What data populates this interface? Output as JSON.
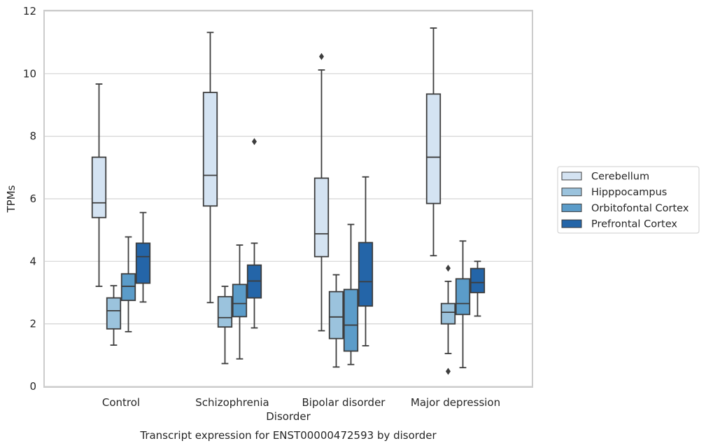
{
  "chart_data": {
    "type": "boxplot",
    "caption": "Transcript expression for ENST00000472593 by disorder",
    "xlabel": "Disorder",
    "ylabel": "TPMs",
    "ylim": [
      0,
      12
    ],
    "yticks": [
      0,
      2,
      4,
      6,
      8,
      10,
      12
    ],
    "grid": "horizontal",
    "legend_position": "right",
    "categories": [
      "Control",
      "Schizophrenia",
      "Bipolar disorder",
      "Major depression"
    ],
    "series": [
      {
        "name": "Cerebellum",
        "color": "#d4e3f2",
        "boxes": [
          {
            "whislo": 3.2,
            "q1": 5.4,
            "med": 5.87,
            "q3": 7.33,
            "whishi": 9.67,
            "fliers": []
          },
          {
            "whislo": 2.68,
            "q1": 5.77,
            "med": 6.75,
            "q3": 9.4,
            "whishi": 11.32,
            "fliers": []
          },
          {
            "whislo": 1.78,
            "q1": 4.15,
            "med": 4.88,
            "q3": 6.66,
            "whishi": 10.12,
            "fliers": [
              10.55
            ]
          },
          {
            "whislo": 4.18,
            "q1": 5.85,
            "med": 7.33,
            "q3": 9.35,
            "whishi": 11.46,
            "fliers": []
          }
        ]
      },
      {
        "name": "Hipppocampus",
        "color": "#9bc3dd",
        "boxes": [
          {
            "whislo": 1.32,
            "q1": 1.84,
            "med": 2.42,
            "q3": 2.83,
            "whishi": 3.22,
            "fliers": []
          },
          {
            "whislo": 0.73,
            "q1": 1.9,
            "med": 2.2,
            "q3": 2.87,
            "whishi": 3.2,
            "fliers": []
          },
          {
            "whislo": 0.62,
            "q1": 1.53,
            "med": 2.22,
            "q3": 3.03,
            "whishi": 3.57,
            "fliers": []
          },
          {
            "whislo": 1.05,
            "q1": 2.0,
            "med": 2.37,
            "q3": 2.65,
            "whishi": 3.36,
            "fliers": [
              3.78,
              0.48
            ]
          }
        ]
      },
      {
        "name": "Orbitofontal Cortex",
        "color": "#5b9cc9",
        "boxes": [
          {
            "whislo": 1.75,
            "q1": 2.75,
            "med": 3.2,
            "q3": 3.6,
            "whishi": 4.78,
            "fliers": []
          },
          {
            "whislo": 0.88,
            "q1": 2.23,
            "med": 2.65,
            "q3": 3.26,
            "whishi": 4.52,
            "fliers": []
          },
          {
            "whislo": 0.7,
            "q1": 1.13,
            "med": 1.96,
            "q3": 3.1,
            "whishi": 5.18,
            "fliers": []
          },
          {
            "whislo": 0.6,
            "q1": 2.3,
            "med": 2.65,
            "q3": 3.44,
            "whishi": 4.65,
            "fliers": []
          }
        ]
      },
      {
        "name": "Prefrontal Cortex",
        "color": "#2465a8",
        "boxes": [
          {
            "whislo": 2.7,
            "q1": 3.3,
            "med": 4.15,
            "q3": 4.58,
            "whishi": 5.56,
            "fliers": []
          },
          {
            "whislo": 1.87,
            "q1": 2.83,
            "med": 3.37,
            "q3": 3.88,
            "whishi": 4.58,
            "fliers": [
              7.83
            ]
          },
          {
            "whislo": 1.3,
            "q1": 2.57,
            "med": 3.35,
            "q3": 4.6,
            "whishi": 6.7,
            "fliers": []
          },
          {
            "whislo": 2.25,
            "q1": 3.0,
            "med": 3.32,
            "q3": 3.77,
            "whishi": 4.0,
            "fliers": []
          }
        ]
      }
    ]
  }
}
